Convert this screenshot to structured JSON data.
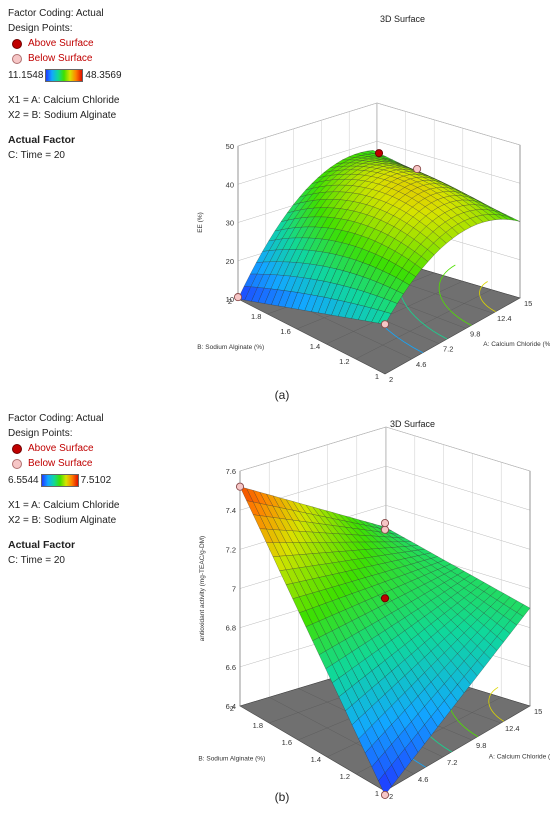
{
  "chart_data": [
    {
      "type": "surface3d",
      "caption": "(a)",
      "title": "3D Surface",
      "factor_coding": "Factor Coding: Actual",
      "design_points_label": "Design Points:",
      "above_label": "Above Surface",
      "below_label": "Below Surface",
      "colorbar_min": "11.1548",
      "colorbar_max": "48.3569",
      "x1_desc": "X1 = A: Calcium Chloride",
      "x2_desc": "X2 = B: Sodium Alginate",
      "actual_factor_label": "Actual Factor",
      "actual_factor_value": "C: Time = 20",
      "xlabel": "A: Calcium Chloride (%)",
      "ylabel": "B: Sodium Alginate (%)",
      "zlabel": "EE (%)",
      "x_ticks": [
        "2",
        "4.6",
        "7.2",
        "9.8",
        "12.4",
        "15"
      ],
      "y_ticks": [
        "1",
        "1.2",
        "1.4",
        "1.6",
        "1.8",
        "2"
      ],
      "z_ticks": [
        "10",
        "20",
        "30",
        "40",
        "50"
      ],
      "xlim": [
        2,
        15
      ],
      "ylim": [
        1,
        2
      ],
      "zlim": [
        10,
        50
      ],
      "surface_corners": {
        "x2_y1": 23,
        "x15_y1": 30,
        "x15_y2": 29,
        "x2_y2": 10
      },
      "surface_curvature": 15,
      "design_points": [
        {
          "x": 8.5,
          "y": 1.5,
          "z": 48,
          "position": "above"
        },
        {
          "x": 2,
          "y": 2,
          "z": 10.5,
          "position": "below"
        },
        {
          "x": 2,
          "y": 1,
          "z": 23,
          "position": "below"
        },
        {
          "x": 15,
          "y": 1.7,
          "z": 30,
          "position": "below"
        }
      ]
    },
    {
      "type": "surface3d",
      "caption": "(b)",
      "title": "3D Surface",
      "factor_coding": "Factor Coding: Actual",
      "design_points_label": "Design Points:",
      "above_label": "Above Surface",
      "below_label": "Below Surface",
      "colorbar_min": "6.5544",
      "colorbar_max": "7.5102",
      "x1_desc": "X1 = A: Calcium Chloride",
      "x2_desc": "X2 = B: Sodium Alginate",
      "actual_factor_label": "Actual Factor",
      "actual_factor_value": "C: Time = 20",
      "xlabel": "A: Calcium Chloride (%)",
      "ylabel": "B: Sodium Alginate (%)",
      "zlabel": "antioxidant activity (mg-TEAC/g-DM)",
      "x_ticks": [
        "2",
        "4.6",
        "7.2",
        "9.8",
        "12.4",
        "15"
      ],
      "y_ticks": [
        "1",
        "1.2",
        "1.4",
        "1.6",
        "1.8",
        "2"
      ],
      "z_ticks": [
        "6.4",
        "6.6",
        "6.8",
        "7",
        "7.2",
        "7.4",
        "7.6"
      ],
      "xlim": [
        2,
        15
      ],
      "ylim": [
        1,
        2
      ],
      "zlim": [
        6.4,
        7.6
      ],
      "surface_corners": {
        "x2_y1": 6.38,
        "x15_y1": 6.9,
        "x15_y2": 6.88,
        "x2_y2": 7.52
      },
      "surface_curvature": 0,
      "design_points": [
        {
          "x": 8.5,
          "y": 1.5,
          "z": 7.3,
          "position": "below"
        },
        {
          "x": 8.5,
          "y": 1.5,
          "z": 6.95,
          "position": "above"
        },
        {
          "x": 2,
          "y": 1,
          "z": 6.38,
          "position": "below"
        },
        {
          "x": 15,
          "y": 2,
          "z": 6.9,
          "position": "below"
        },
        {
          "x": 2,
          "y": 2,
          "z": 7.52,
          "position": "below"
        }
      ]
    }
  ]
}
